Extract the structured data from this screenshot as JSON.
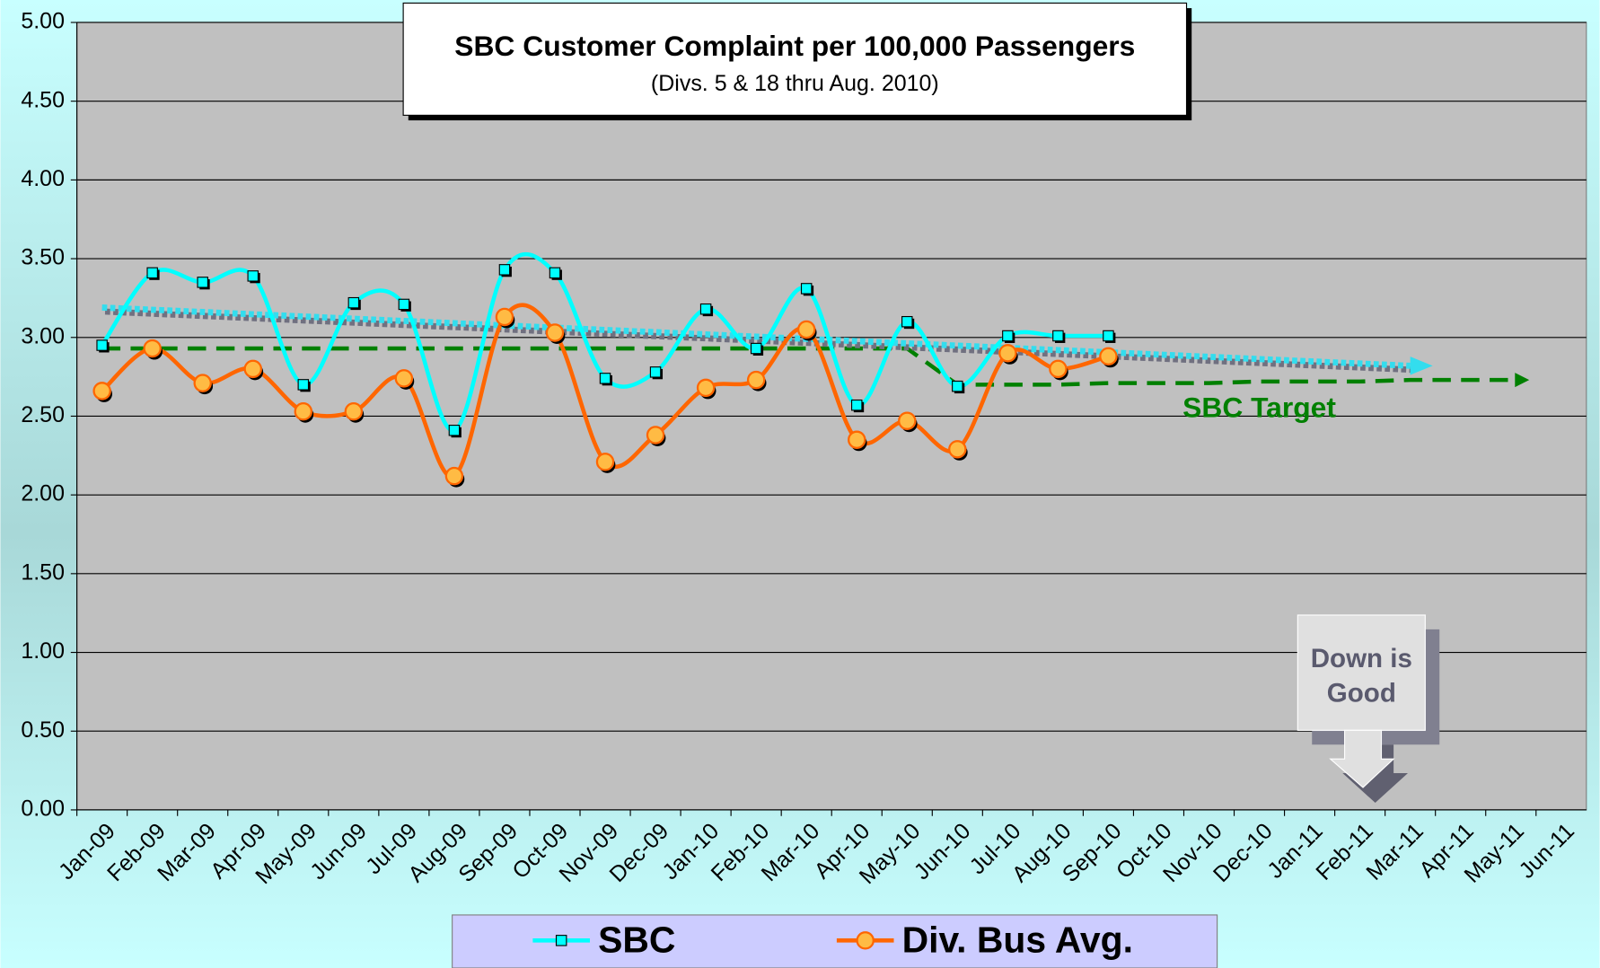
{
  "chart_data": {
    "type": "line",
    "title": "SBC Customer Complaint per 100,000 Passengers",
    "subtitle": "(Divs. 5 & 18 thru Aug. 2010)",
    "categories": [
      "Jan-09",
      "Feb-09",
      "Mar-09",
      "Apr-09",
      "May-09",
      "Jun-09",
      "Jul-09",
      "Aug-09",
      "Sep-09",
      "Oct-09",
      "Nov-09",
      "Dec-09",
      "Jan-10",
      "Feb-10",
      "Mar-10",
      "Apr-10",
      "May-10",
      "Jun-10",
      "Jul-10",
      "Aug-10",
      "Sep-10",
      "Oct-10",
      "Nov-10",
      "Dec-10",
      "Jan-11",
      "Feb-11",
      "Mar-11",
      "Apr-11",
      "May-11",
      "Jun-11"
    ],
    "series": [
      {
        "name": "SBC",
        "color": "#00ffff",
        "values": [
          2.95,
          3.41,
          3.35,
          3.39,
          2.7,
          3.22,
          3.21,
          2.41,
          3.43,
          3.41,
          2.74,
          2.78,
          3.18,
          2.93,
          3.31,
          2.57,
          3.1,
          2.69,
          3.01,
          3.01,
          3.01,
          null,
          null,
          null,
          null,
          null,
          null,
          null,
          null,
          null
        ]
      },
      {
        "name": "Div. Bus Avg.",
        "color": "#ff6600",
        "values": [
          2.66,
          2.93,
          2.71,
          2.8,
          2.53,
          2.53,
          2.74,
          2.12,
          3.13,
          3.03,
          2.21,
          2.38,
          2.68,
          2.73,
          3.05,
          2.35,
          2.47,
          2.29,
          2.9,
          2.8,
          2.88,
          null,
          null,
          null,
          null,
          null,
          null,
          null,
          null,
          null
        ]
      }
    ],
    "target": {
      "name": "SBC Target",
      "color": "#008000",
      "values": [
        2.93,
        2.93,
        2.93,
        2.93,
        2.93,
        2.93,
        2.93,
        2.93,
        2.93,
        2.93,
        2.93,
        2.93,
        2.93,
        2.93,
        2.93,
        2.93,
        2.93,
        2.7,
        2.7,
        2.7,
        2.71,
        2.71,
        2.71,
        2.72,
        2.72,
        2.72,
        2.73,
        2.73,
        2.73,
        null
      ]
    },
    "trend": {
      "color": "#33ddee",
      "x": [
        "Jan-09",
        "Mar-11"
      ],
      "values": [
        3.19,
        2.82
      ]
    },
    "annotation": "Down is Good",
    "ylim": [
      0,
      5
    ],
    "yticks": [
      {
        "value": 0,
        "label": "0.00"
      },
      {
        "value": 0.5,
        "label": "0.50"
      },
      {
        "value": 1,
        "label": "1.00"
      },
      {
        "value": 1.5,
        "label": "1.50"
      },
      {
        "value": 2,
        "label": "2.00"
      },
      {
        "value": 2.5,
        "label": "2.50"
      },
      {
        "value": 3,
        "label": "3.00"
      },
      {
        "value": 3.5,
        "label": "3.50"
      },
      {
        "value": 4,
        "label": "4.00"
      },
      {
        "value": 4.5,
        "label": "4.50"
      },
      {
        "value": 5,
        "label": "5.00"
      }
    ],
    "grid": true
  }
}
